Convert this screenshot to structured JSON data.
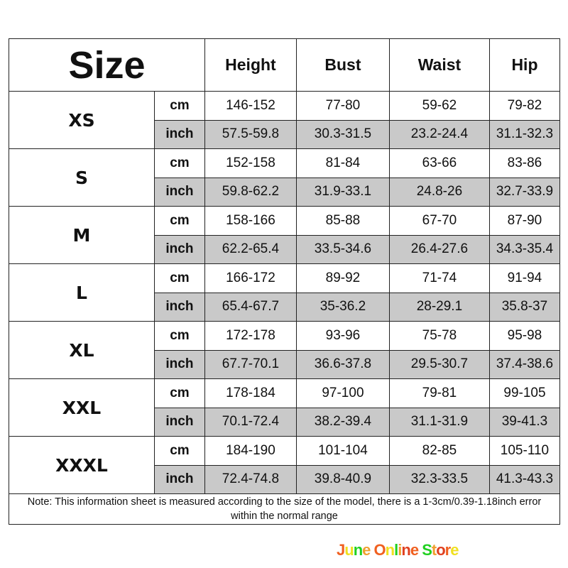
{
  "header": {
    "size": "Size",
    "columns": [
      "Height",
      "Bust",
      "Waist",
      "Hip"
    ]
  },
  "units": {
    "cm": "cm",
    "inch": "inch"
  },
  "rows": [
    {
      "size": "XS",
      "cm": [
        "146-152",
        "77-80",
        "59-62",
        "79-82"
      ],
      "inch": [
        "57.5-59.8",
        "30.3-31.5",
        "23.2-24.4",
        "31.1-32.3"
      ]
    },
    {
      "size": "S",
      "cm": [
        "152-158",
        "81-84",
        "63-66",
        "83-86"
      ],
      "inch": [
        "59.8-62.2",
        "31.9-33.1",
        "24.8-26",
        "32.7-33.9"
      ]
    },
    {
      "size": "M",
      "cm": [
        "158-166",
        "85-88",
        "67-70",
        "87-90"
      ],
      "inch": [
        "62.2-65.4",
        "33.5-34.6",
        "26.4-27.6",
        "34.3-35.4"
      ]
    },
    {
      "size": "L",
      "cm": [
        "166-172",
        "89-92",
        "71-74",
        "91-94"
      ],
      "inch": [
        "65.4-67.7",
        "35-36.2",
        "28-29.1",
        "35.8-37"
      ]
    },
    {
      "size": "XL",
      "cm": [
        "172-178",
        "93-96",
        "75-78",
        "95-98"
      ],
      "inch": [
        "67.7-70.1",
        "36.6-37.8",
        "29.5-30.7",
        "37.4-38.6"
      ]
    },
    {
      "size": "XXL",
      "cm": [
        "178-184",
        "97-100",
        "79-81",
        "99-105"
      ],
      "inch": [
        "70.1-72.4",
        "38.2-39.4",
        "31.1-31.9",
        "39-41.3"
      ]
    },
    {
      "size": "XXXL",
      "cm": [
        "184-190",
        "101-104",
        "82-85",
        "105-110"
      ],
      "inch": [
        "72.4-74.8",
        "39.8-40.9",
        "32.3-33.5",
        "41.3-43.3"
      ]
    }
  ],
  "note": "Note: This information sheet is measured according to the size of the model, there is a 1-3cm/0.39-1.18inch error within the normal range",
  "watermark": "June Online Store",
  "colors": {
    "shade": "#c9c9c9",
    "watermark": [
      "#f06020",
      "#f0e020",
      "#20d020",
      "#f0a030",
      "#e04020"
    ]
  }
}
